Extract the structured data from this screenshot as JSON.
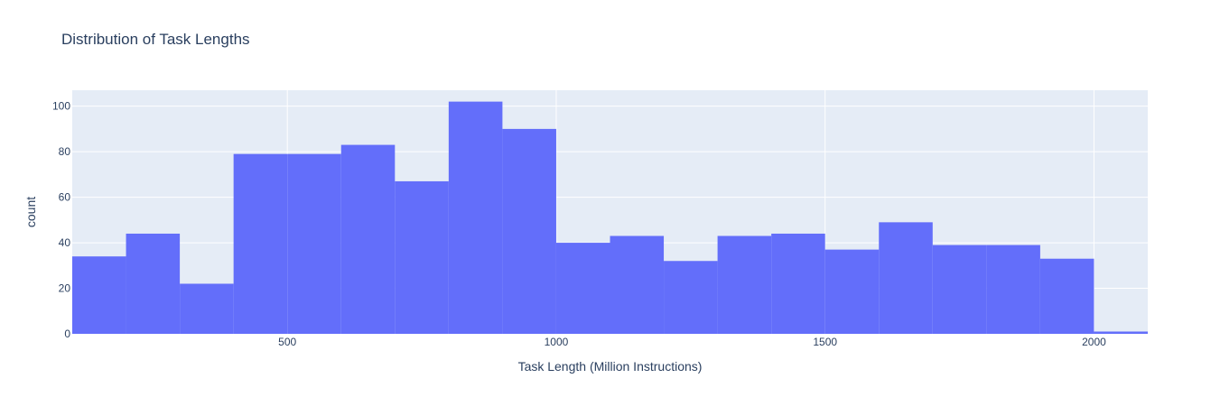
{
  "chart_data": {
    "type": "bar",
    "title": "Distribution of Task Lengths",
    "xlabel": "Task Length (Million Instructions)",
    "ylabel": "count",
    "xlim": [
      100,
      2100
    ],
    "ylim": [
      0,
      107
    ],
    "bin_width": 100,
    "bins": [
      {
        "start": 100,
        "end": 200,
        "count": 34
      },
      {
        "start": 200,
        "end": 300,
        "count": 44
      },
      {
        "start": 300,
        "end": 400,
        "count": 22
      },
      {
        "start": 400,
        "end": 500,
        "count": 79
      },
      {
        "start": 500,
        "end": 600,
        "count": 79
      },
      {
        "start": 600,
        "end": 700,
        "count": 83
      },
      {
        "start": 700,
        "end": 800,
        "count": 67
      },
      {
        "start": 800,
        "end": 900,
        "count": 102
      },
      {
        "start": 900,
        "end": 1000,
        "count": 90
      },
      {
        "start": 1000,
        "end": 1100,
        "count": 40
      },
      {
        "start": 1100,
        "end": 1200,
        "count": 43
      },
      {
        "start": 1200,
        "end": 1300,
        "count": 32
      },
      {
        "start": 1300,
        "end": 1400,
        "count": 43
      },
      {
        "start": 1400,
        "end": 1500,
        "count": 44
      },
      {
        "start": 1500,
        "end": 1600,
        "count": 37
      },
      {
        "start": 1600,
        "end": 1700,
        "count": 49
      },
      {
        "start": 1700,
        "end": 1800,
        "count": 39
      },
      {
        "start": 1800,
        "end": 1900,
        "count": 39
      },
      {
        "start": 1900,
        "end": 2000,
        "count": 33
      },
      {
        "start": 2000,
        "end": 2100,
        "count": 1
      }
    ],
    "x_ticks": [
      500,
      1000,
      1500,
      2000
    ],
    "y_ticks": [
      0,
      20,
      40,
      60,
      80,
      100
    ],
    "grid": true,
    "colors": {
      "bar": "#636efa",
      "plot_background": "#e5ecf6",
      "grid": "#ffffff",
      "text": "#2a3f5f"
    }
  }
}
